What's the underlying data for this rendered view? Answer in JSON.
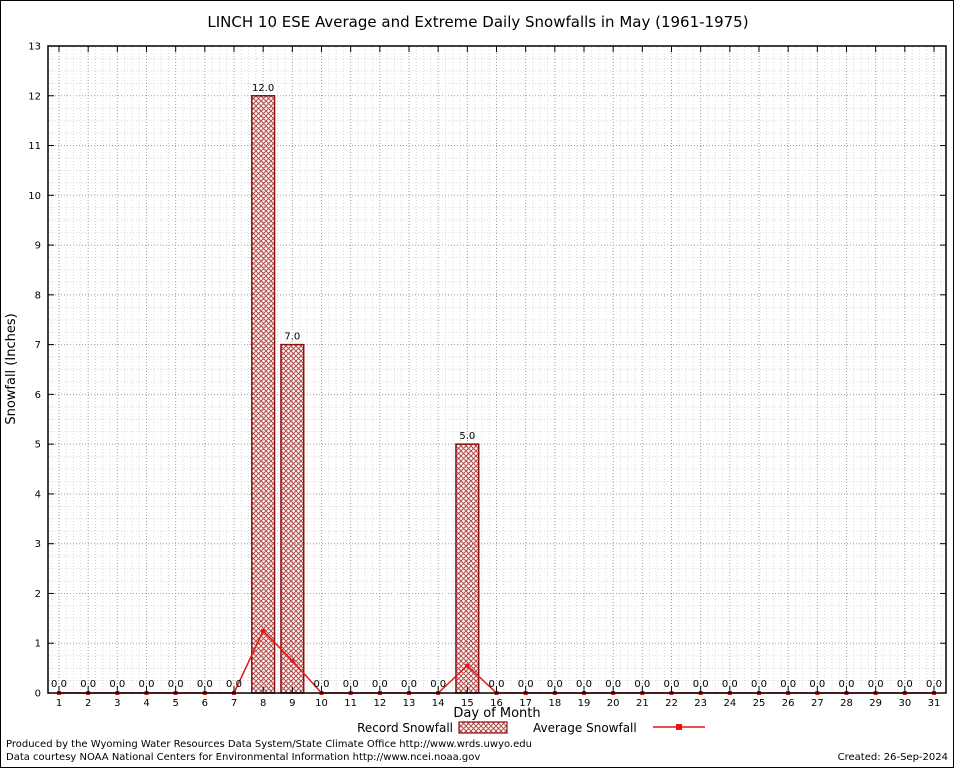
{
  "chart_data": {
    "type": "bar",
    "title": "LINCH 10 ESE Average and Extreme Daily Snowfalls in May (1961-1975)",
    "xlabel": "Day of Month",
    "ylabel": "Snowfall (Inches)",
    "ylim": [
      0,
      13
    ],
    "y_major_step": 1,
    "y_minor_step": 0.25,
    "grid": "on",
    "legend_position": "bottom-center",
    "categories": [
      1,
      2,
      3,
      4,
      5,
      6,
      7,
      8,
      9,
      10,
      11,
      12,
      13,
      14,
      15,
      16,
      17,
      18,
      19,
      20,
      21,
      22,
      23,
      24,
      25,
      26,
      27,
      28,
      29,
      30,
      31
    ],
    "series": [
      {
        "name": "Record Snowfall",
        "kind": "bar",
        "outline_color": "#8b1010",
        "hatch_color": "#b24848",
        "values": [
          0,
          0,
          0,
          0,
          0,
          0,
          0,
          12,
          7,
          0,
          0,
          0,
          0,
          0,
          5,
          0,
          0,
          0,
          0,
          0,
          0,
          0,
          0,
          0,
          0,
          0,
          0,
          0,
          0,
          0,
          0
        ]
      },
      {
        "name": "Average Snowfall",
        "kind": "line",
        "color": "#e81414",
        "values": [
          0,
          0,
          0,
          0,
          0,
          0,
          0,
          1.25,
          0.65,
          0,
          0,
          0,
          0,
          0,
          0.55,
          0,
          0,
          0,
          0,
          0,
          0,
          0,
          0,
          0,
          0,
          0,
          0,
          0,
          0,
          0,
          0
        ]
      }
    ],
    "value_labels": [
      "0.0",
      "0.0",
      "0.0",
      "0.0",
      "0.0",
      "0.0",
      "0.0",
      "12.0",
      "7.0",
      "0.0",
      "0.0",
      "0.0",
      "0.0",
      "0.0",
      "5.0",
      "0.0",
      "0.0",
      "0.0",
      "0.0",
      "0.0",
      "0.0",
      "0.0",
      "0.0",
      "0.0",
      "0.0",
      "0.0",
      "0.0",
      "0.0",
      "0.0",
      "0.0",
      "0.0"
    ]
  },
  "footer": {
    "line1": "Produced by the Wyoming Water Resources Data System/State Climate Office http://www.wrds.uwyo.edu",
    "line2": "Data courtesy NOAA National Centers for Environmental Information http://www.ncei.noaa.gov",
    "created": "Created: 26-Sep-2024"
  }
}
